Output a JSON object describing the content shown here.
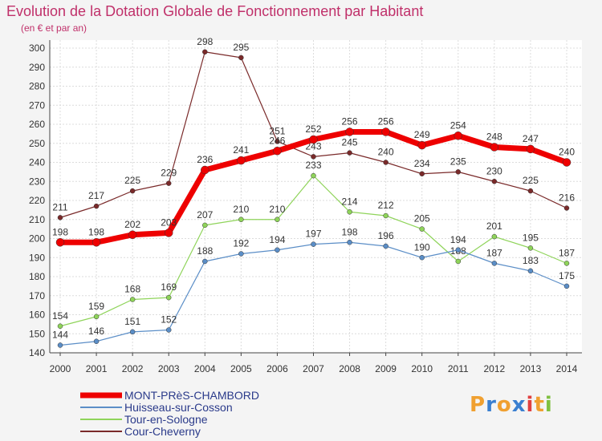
{
  "chart_data": {
    "type": "line",
    "title": "Evolution de la Dotation Globale de Fonctionnement par Habitant",
    "subtitle": "(en € et par an)",
    "xlabel": "",
    "ylabel": "",
    "ylim": [
      140,
      300
    ],
    "yticks": [
      140,
      150,
      160,
      170,
      180,
      190,
      200,
      210,
      220,
      230,
      240,
      250,
      260,
      270,
      280,
      290,
      300
    ],
    "x": [
      2000,
      2001,
      2002,
      2003,
      2004,
      2005,
      2006,
      2007,
      2008,
      2009,
      2010,
      2011,
      2012,
      2013,
      2014
    ],
    "grid": true,
    "legend_position": "bottom-left",
    "series": [
      {
        "name": "Cour-Cheverny",
        "color": "#7a2a2a",
        "values": [
          211,
          217,
          225,
          229,
          298,
          295,
          251,
          243,
          245,
          240,
          234,
          235,
          230,
          225,
          216
        ]
      },
      {
        "name": "Tour-en-Sologne",
        "color": "#8fd45a",
        "values": [
          154,
          159,
          168,
          169,
          207,
          210,
          210,
          233,
          214,
          212,
          205,
          188,
          201,
          195,
          187
        ]
      },
      {
        "name": "Huisseau-sur-Cosson",
        "color": "#5b8ec7",
        "values": [
          144,
          146,
          151,
          152,
          188,
          192,
          194,
          197,
          198,
          196,
          190,
          194,
          187,
          183,
          175
        ]
      },
      {
        "name": "MONT-PRèS-CHAMBORD",
        "color": "#ee0000",
        "values": [
          198,
          198,
          202,
          203,
          236,
          241,
          246,
          252,
          256,
          256,
          249,
          254,
          248,
          247,
          240
        ]
      }
    ]
  },
  "legend": [
    "MONT-PRèS-CHAMBORD",
    "Huisseau-sur-Cosson",
    "Tour-en-Sologne",
    "Cour-Cheverny"
  ],
  "logo": {
    "letters": [
      "P",
      "r",
      "o",
      "x",
      "i",
      "t",
      "i"
    ],
    "colors": [
      "#f0a030",
      "#3a7fd0",
      "#f0a030",
      "#3a7fd0",
      "#e04040",
      "#f0a030",
      "#7fc040"
    ]
  }
}
